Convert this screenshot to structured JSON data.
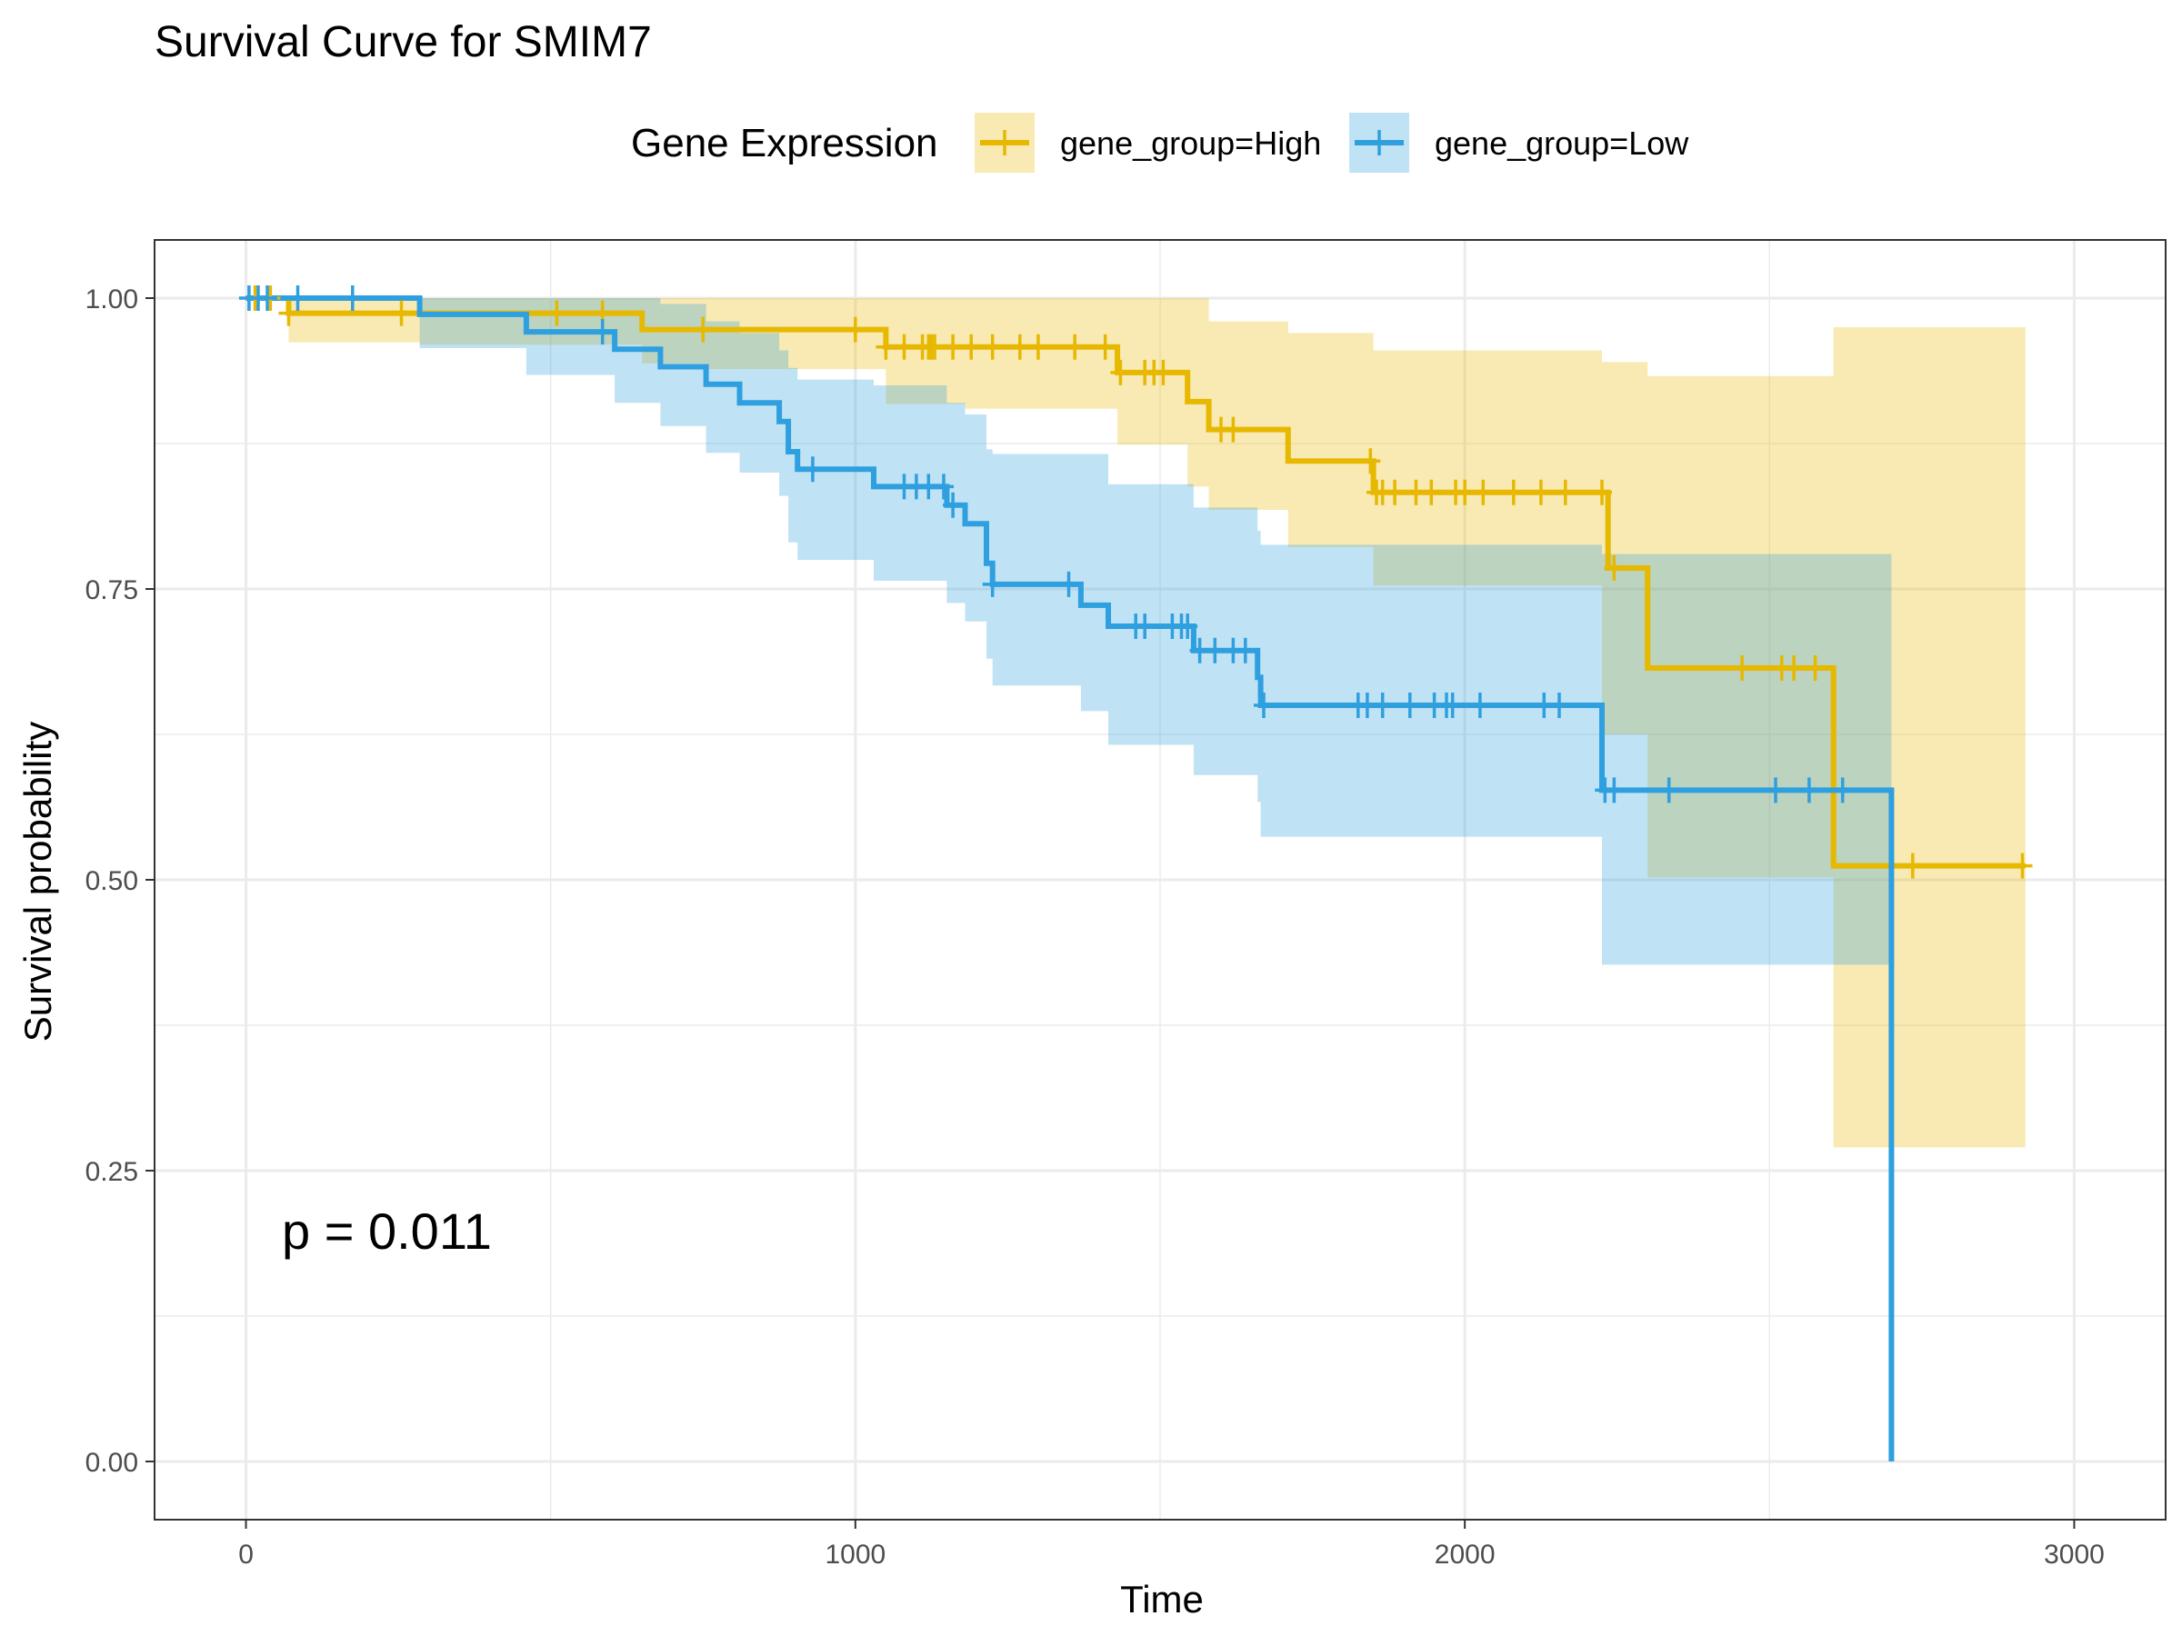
{
  "chart_data": {
    "type": "line",
    "subtype": "kaplan-meier",
    "title": "Survival Curve for SMIM7",
    "xlabel": "Time",
    "ylabel": "Survival probability",
    "xlim": [
      -150,
      3150
    ],
    "ylim": [
      -0.05,
      1.05
    ],
    "x_ticks": [
      0,
      1000,
      2000,
      3000
    ],
    "x_tick_labels": [
      "0",
      "1000",
      "2000",
      "3000"
    ],
    "y_ticks": [
      0,
      0.25,
      0.5,
      0.75,
      1.0
    ],
    "y_tick_labels": [
      "0.00",
      "0.25",
      "0.50",
      "0.75",
      "1.00"
    ],
    "grid": true,
    "legend": {
      "title": "Gene Expression",
      "position": "top"
    },
    "annotation": "p = 0.011",
    "series": [
      {
        "name": "gene_group=High",
        "color": "#E7B800",
        "steps": [
          [
            0,
            1.0
          ],
          [
            70,
            0.987
          ],
          [
            650,
            0.973
          ],
          [
            1050,
            0.958
          ],
          [
            1430,
            0.936
          ],
          [
            1545,
            0.911
          ],
          [
            1580,
            0.887
          ],
          [
            1710,
            0.86
          ],
          [
            1850,
            0.833
          ],
          [
            2235,
            0.768
          ],
          [
            2300,
            0.682
          ],
          [
            2605,
            0.512
          ],
          [
            2920,
            0.512
          ]
        ],
        "ci": [
          [
            0,
            1.0,
            1.0
          ],
          [
            70,
            0.962,
            1.0
          ],
          [
            285,
            0.96,
            1.0
          ],
          [
            650,
            0.944,
            1.0
          ],
          [
            755,
            0.939,
            1.0
          ],
          [
            1050,
            0.909,
            1.0
          ],
          [
            1180,
            0.905,
            1.0
          ],
          [
            1430,
            0.874,
            1.0
          ],
          [
            1545,
            0.838,
            1.0
          ],
          [
            1580,
            0.818,
            0.98
          ],
          [
            1710,
            0.786,
            0.97
          ],
          [
            1850,
            0.753,
            0.955
          ],
          [
            2225,
            0.625,
            0.945
          ],
          [
            2300,
            0.502,
            0.933
          ],
          [
            2605,
            0.27,
            0.975
          ],
          [
            2920,
            0.27,
            0.975
          ]
        ],
        "censored": [
          15,
          40,
          70,
          255,
          510,
          585,
          750,
          1000,
          1050,
          1080,
          1110,
          1120,
          1125,
          1130,
          1160,
          1190,
          1225,
          1270,
          1300,
          1360,
          1410,
          1435,
          1475,
          1490,
          1505,
          1600,
          1620,
          1845,
          1855,
          1865,
          1885,
          1920,
          1945,
          1985,
          2000,
          2030,
          2080,
          2125,
          2165,
          2225,
          2245,
          2455,
          2520,
          2540,
          2575,
          2735,
          2915
        ]
      },
      {
        "name": "gene_group=Low",
        "color": "#2E9FDF",
        "steps": [
          [
            0,
            1.0
          ],
          [
            285,
            0.986
          ],
          [
            460,
            0.971
          ],
          [
            605,
            0.956
          ],
          [
            680,
            0.941
          ],
          [
            755,
            0.926
          ],
          [
            810,
            0.91
          ],
          [
            875,
            0.894
          ],
          [
            890,
            0.868
          ],
          [
            905,
            0.853
          ],
          [
            1030,
            0.838
          ],
          [
            1150,
            0.822
          ],
          [
            1180,
            0.806
          ],
          [
            1215,
            0.772
          ],
          [
            1225,
            0.754
          ],
          [
            1370,
            0.736
          ],
          [
            1415,
            0.718
          ],
          [
            1555,
            0.697
          ],
          [
            1660,
            0.674
          ],
          [
            1665,
            0.65
          ],
          [
            2225,
            0.577
          ],
          [
            2700,
            0.0
          ]
        ],
        "ci": [
          [
            0,
            1.0,
            1.0
          ],
          [
            285,
            0.957,
            1.0
          ],
          [
            460,
            0.934,
            1.0
          ],
          [
            605,
            0.91,
            1.0
          ],
          [
            680,
            0.89,
            0.995
          ],
          [
            755,
            0.867,
            0.98
          ],
          [
            810,
            0.85,
            0.97
          ],
          [
            875,
            0.83,
            0.955
          ],
          [
            890,
            0.79,
            0.94
          ],
          [
            905,
            0.775,
            0.93
          ],
          [
            1030,
            0.757,
            0.925
          ],
          [
            1150,
            0.738,
            0.91
          ],
          [
            1180,
            0.722,
            0.9
          ],
          [
            1215,
            0.69,
            0.87
          ],
          [
            1225,
            0.667,
            0.866
          ],
          [
            1370,
            0.645,
            0.866
          ],
          [
            1415,
            0.616,
            0.84
          ],
          [
            1555,
            0.59,
            0.82
          ],
          [
            1660,
            0.567,
            0.8
          ],
          [
            1665,
            0.537,
            0.788
          ],
          [
            2225,
            0.427,
            0.78
          ],
          [
            2700,
            0.427,
            0.78
          ]
        ],
        "censored": [
          5,
          20,
          35,
          85,
          175,
          585,
          930,
          1080,
          1100,
          1120,
          1145,
          1160,
          1225,
          1350,
          1460,
          1475,
          1520,
          1535,
          1545,
          1565,
          1590,
          1620,
          1640,
          1670,
          1825,
          1840,
          1865,
          1910,
          1950,
          1970,
          1980,
          2025,
          2130,
          2155,
          2230,
          2245,
          2335,
          2510,
          2565,
          2620
        ]
      }
    ]
  }
}
